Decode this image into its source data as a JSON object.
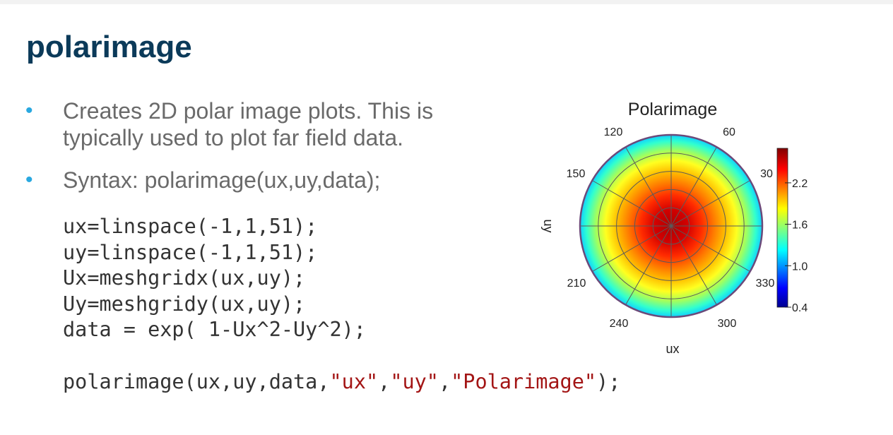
{
  "slide": {
    "title": "polarimage",
    "bullets": [
      "Creates 2D polar image plots. This is typically used to plot far field data.",
      "Syntax: polarimage(ux,uy,data);"
    ],
    "code_lines": [
      "ux=linspace(-1,1,51);",
      "uy=linspace(-1,1,51);",
      "Ux=meshgridx(ux,uy);",
      "Uy=meshgridy(ux,uy);",
      "data = exp( 1-Ux^2-Uy^2);"
    ],
    "call": {
      "prefix": "polarimage(ux,uy,data,",
      "arg1": "\"ux\"",
      "comma1": ",",
      "arg2": "\"uy\"",
      "comma2": ",",
      "arg3": "\"Polarimage\"",
      "suffix": ");"
    }
  },
  "chart_data": {
    "type": "heatmap",
    "title": "Polarimage",
    "xlabel": "ux",
    "ylabel": "uy",
    "angle_labels": [
      "120",
      "60",
      "150",
      "30",
      "210",
      "330",
      "240",
      "300"
    ],
    "colorbar": {
      "ticks": [
        "2.2",
        "1.6",
        "1.0",
        "0.4"
      ],
      "min": 0.4,
      "max": 2.7,
      "colormap": "jet"
    },
    "data_function": "exp(1-ux^2-uy^2)",
    "ux_range": [
      -1,
      1
    ],
    "uy_range": [
      -1,
      1
    ]
  }
}
